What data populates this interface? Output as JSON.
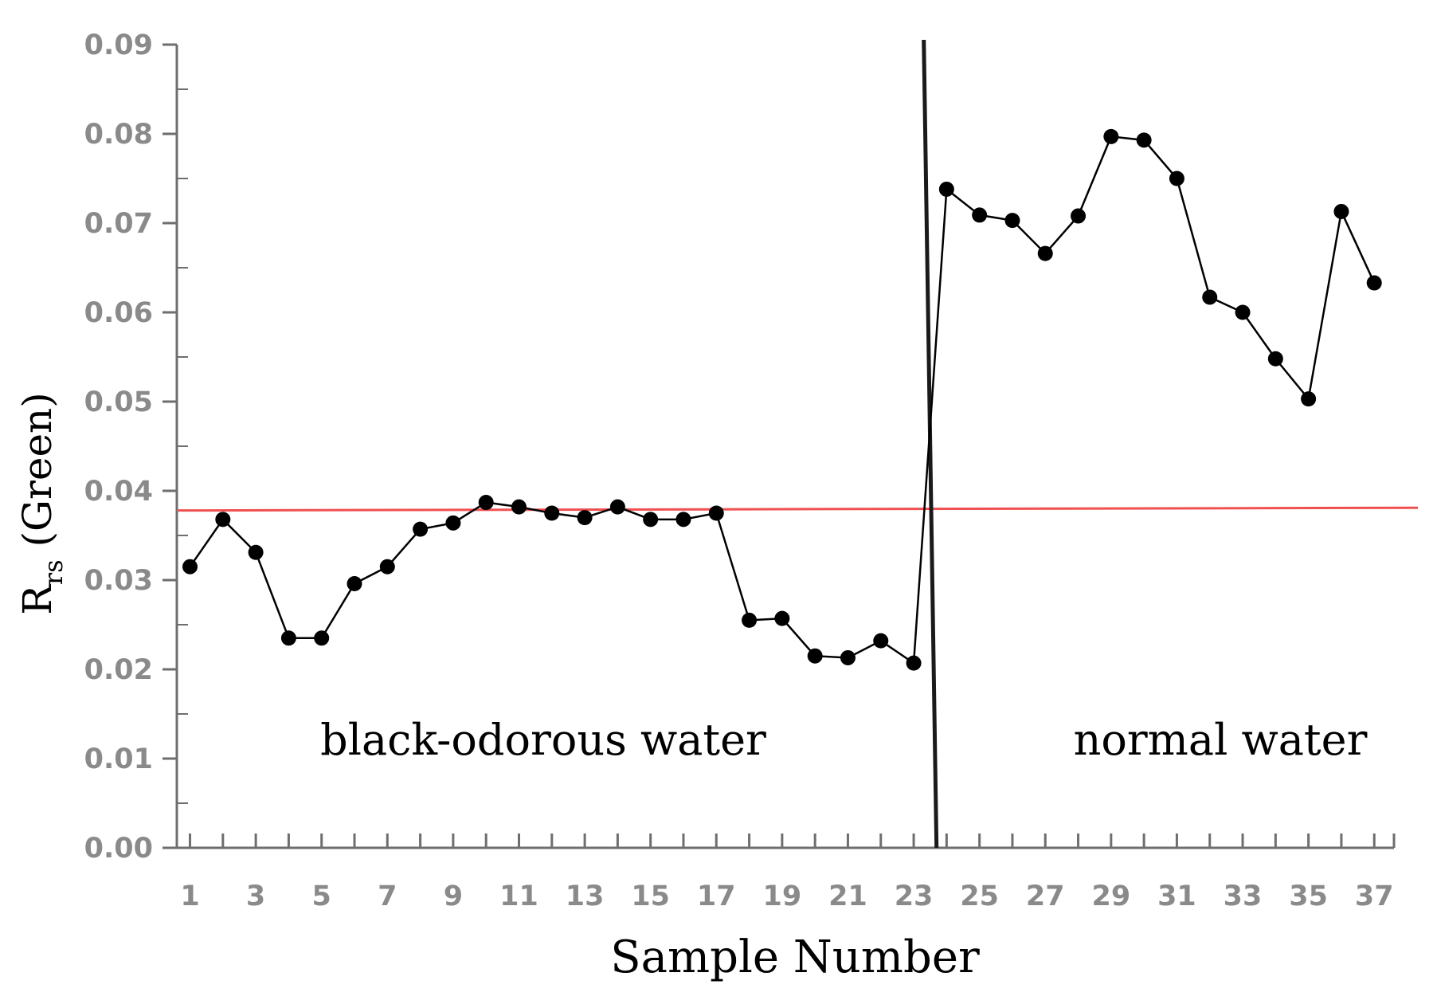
{
  "chart_data": {
    "type": "line",
    "title": "",
    "xlabel": "Sample Number",
    "ylabel": {
      "main": "R",
      "subscript": "rs",
      "suffix": " (Green)"
    },
    "x": [
      1,
      2,
      3,
      4,
      5,
      6,
      7,
      8,
      9,
      10,
      11,
      12,
      13,
      14,
      15,
      16,
      17,
      18,
      19,
      20,
      21,
      22,
      23,
      24,
      25,
      26,
      27,
      28,
      29,
      30,
      31,
      32,
      33,
      34,
      35,
      36,
      37
    ],
    "xticks": [
      {
        "value": 1,
        "label": "1"
      },
      {
        "value": 3,
        "label": "3"
      },
      {
        "value": 5,
        "label": "5"
      },
      {
        "value": 7,
        "label": "7"
      },
      {
        "value": 9,
        "label": "9"
      },
      {
        "value": 11,
        "label": "11"
      },
      {
        "value": 13,
        "label": "13"
      },
      {
        "value": 15,
        "label": "15"
      },
      {
        "value": 17,
        "label": "17"
      },
      {
        "value": 19,
        "label": "19"
      },
      {
        "value": 21,
        "label": "21"
      },
      {
        "value": 23,
        "label": "23"
      },
      {
        "value": 25,
        "label": "25"
      },
      {
        "value": 27,
        "label": "27"
      },
      {
        "value": 29,
        "label": "29"
      },
      {
        "value": 31,
        "label": "31"
      },
      {
        "value": 33,
        "label": "33"
      },
      {
        "value": 35,
        "label": "35"
      },
      {
        "value": 37,
        "label": "37"
      }
    ],
    "yticks": [
      {
        "value": 0.0,
        "label": "0.00"
      },
      {
        "value": 0.01,
        "label": "0.01"
      },
      {
        "value": 0.02,
        "label": "0.02"
      },
      {
        "value": 0.03,
        "label": "0.03"
      },
      {
        "value": 0.04,
        "label": "0.04"
      },
      {
        "value": 0.05,
        "label": "0.05"
      },
      {
        "value": 0.06,
        "label": "0.06"
      },
      {
        "value": 0.07,
        "label": "0.07"
      },
      {
        "value": 0.08,
        "label": "0.08"
      },
      {
        "value": 0.09,
        "label": "0.09"
      }
    ],
    "xlim": [
      0.6,
      37.6
    ],
    "ylim": [
      0,
      0.09
    ],
    "series": [
      {
        "name": "Rrs (Green)",
        "color": "#000000",
        "marker": "circle",
        "values": [
          0.0315,
          0.0368,
          0.0331,
          0.0235,
          0.0235,
          0.0296,
          0.0315,
          0.0357,
          0.0364,
          0.0387,
          0.0382,
          0.0375,
          0.037,
          0.0382,
          0.0368,
          0.0368,
          0.0375,
          0.0255,
          0.0257,
          0.0215,
          0.0213,
          0.0232,
          0.0207,
          0.0738,
          0.0709,
          0.0703,
          0.0666,
          0.0708,
          0.0797,
          0.0793,
          0.075,
          0.0617,
          0.06,
          0.0548,
          0.0503,
          0.0713,
          0.0633
        ]
      }
    ],
    "threshold_line": {
      "color": "#f05050",
      "y_start": 0.0378,
      "y_end": 0.0381
    },
    "divider": {
      "color": "#1a1a1a",
      "x": 23.5
    },
    "annotations": [
      {
        "text": "black-odorous water",
        "region": "left"
      },
      {
        "text": "normal water",
        "region": "right"
      }
    ],
    "grid": false,
    "legend": "none"
  }
}
